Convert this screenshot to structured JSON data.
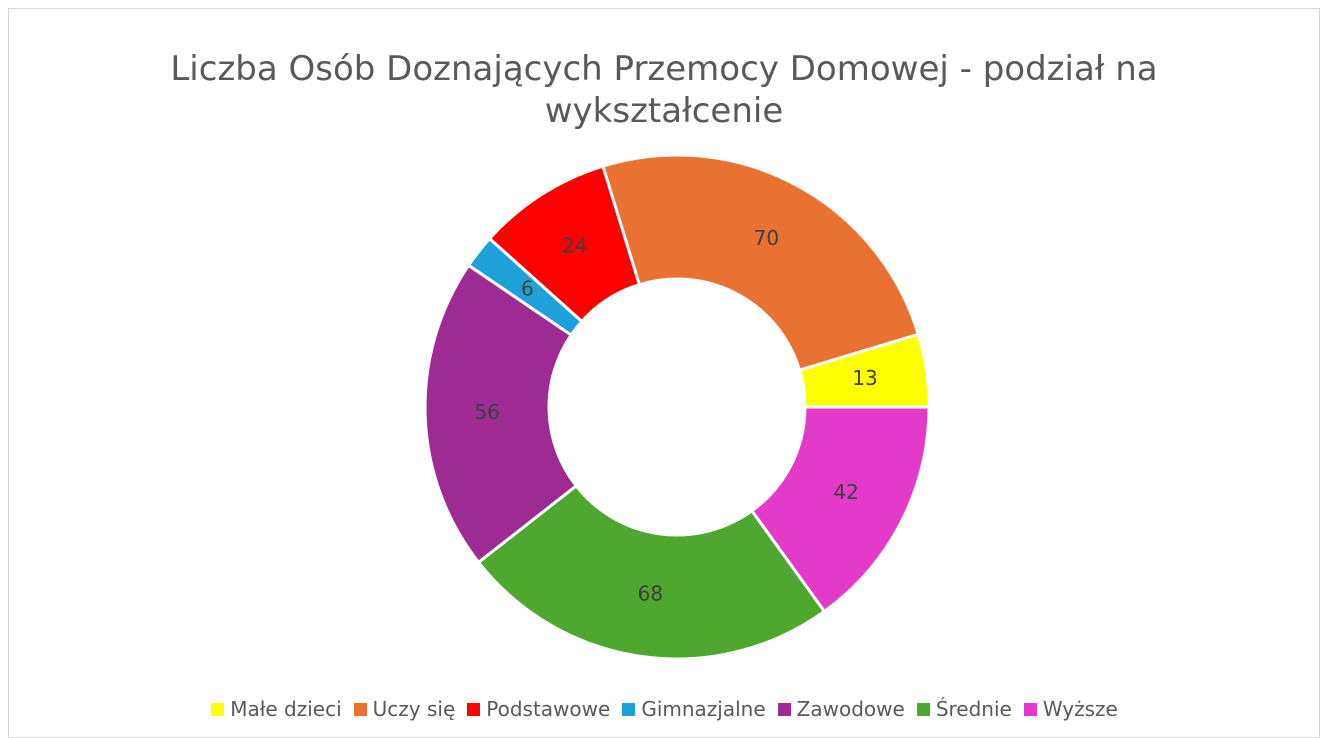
{
  "chart_data": {
    "type": "doughnut",
    "title": "Liczba Osób Doznających Przemocy Domowej - podział na wykształcenie",
    "categories": [
      "Małe dzieci",
      "Uczy się",
      "Podstawowe",
      "Gimnazjalne",
      "Zawodowe",
      "Średnie",
      "Wyższe"
    ],
    "values": [
      13,
      70,
      24,
      6,
      56,
      68,
      42
    ],
    "colors": [
      "#ffff00",
      "#e97132",
      "#ff0000",
      "#1ea0d8",
      "#9e2a93",
      "#4ea72e",
      "#e33ac9"
    ],
    "legend": "bottom"
  }
}
